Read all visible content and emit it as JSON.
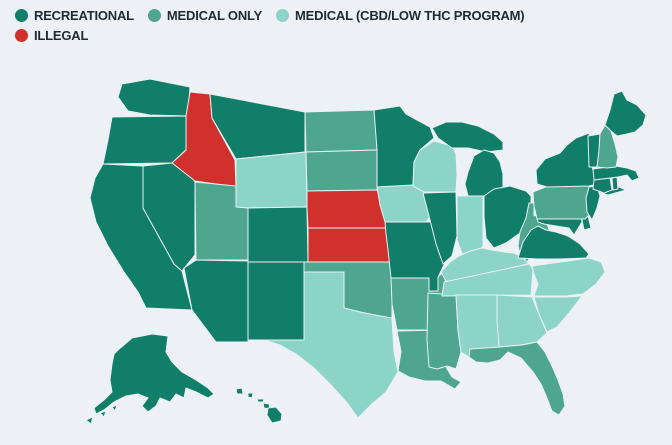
{
  "page": {
    "background": "#EDF1F6"
  },
  "legend": {
    "text_color": "#1F2A33",
    "items": [
      {
        "label": "RECREATIONAL",
        "status": "recreational",
        "color": "#117E69"
      },
      {
        "label": "MEDICAL ONLY",
        "status": "medical_only",
        "color": "#4EA68E"
      },
      {
        "label": "MEDICAL (CBD/LOW THC PROGRAM)",
        "status": "medical_cbd",
        "color": "#8CD3C8"
      },
      {
        "label": "ILLEGAL",
        "status": "illegal",
        "color": "#D1312D"
      }
    ]
  },
  "map": {
    "type": "choropleth",
    "region": "United States",
    "background": "#EDF1F6",
    "state_border_color": "#E9F1F5",
    "states": [
      {
        "abbr": "WA",
        "name": "Washington",
        "status": "recreational"
      },
      {
        "abbr": "OR",
        "name": "Oregon",
        "status": "recreational"
      },
      {
        "abbr": "CA",
        "name": "California",
        "status": "recreational"
      },
      {
        "abbr": "NV",
        "name": "Nevada",
        "status": "recreational"
      },
      {
        "abbr": "ID",
        "name": "Idaho",
        "status": "illegal"
      },
      {
        "abbr": "MT",
        "name": "Montana",
        "status": "recreational"
      },
      {
        "abbr": "WY",
        "name": "Wyoming",
        "status": "medical_cbd"
      },
      {
        "abbr": "UT",
        "name": "Utah",
        "status": "medical_only"
      },
      {
        "abbr": "CO",
        "name": "Colorado",
        "status": "recreational"
      },
      {
        "abbr": "AZ",
        "name": "Arizona",
        "status": "recreational"
      },
      {
        "abbr": "NM",
        "name": "New Mexico",
        "status": "recreational"
      },
      {
        "abbr": "ND",
        "name": "North Dakota",
        "status": "medical_only"
      },
      {
        "abbr": "SD",
        "name": "South Dakota",
        "status": "medical_only"
      },
      {
        "abbr": "NE",
        "name": "Nebraska",
        "status": "illegal"
      },
      {
        "abbr": "KS",
        "name": "Kansas",
        "status": "illegal"
      },
      {
        "abbr": "OK",
        "name": "Oklahoma",
        "status": "medical_only"
      },
      {
        "abbr": "TX",
        "name": "Texas",
        "status": "medical_cbd"
      },
      {
        "abbr": "MN",
        "name": "Minnesota",
        "status": "recreational"
      },
      {
        "abbr": "IA",
        "name": "Iowa",
        "status": "medical_cbd"
      },
      {
        "abbr": "MO",
        "name": "Missouri",
        "status": "recreational"
      },
      {
        "abbr": "AR",
        "name": "Arkansas",
        "status": "medical_only"
      },
      {
        "abbr": "LA",
        "name": "Louisiana",
        "status": "medical_only"
      },
      {
        "abbr": "WI",
        "name": "Wisconsin",
        "status": "medical_cbd"
      },
      {
        "abbr": "IL",
        "name": "Illinois",
        "status": "recreational"
      },
      {
        "abbr": "MS",
        "name": "Mississippi",
        "status": "medical_only"
      },
      {
        "abbr": "MI",
        "name": "Michigan",
        "status": "recreational"
      },
      {
        "abbr": "IN",
        "name": "Indiana",
        "status": "medical_cbd"
      },
      {
        "abbr": "KY",
        "name": "Kentucky",
        "status": "medical_cbd"
      },
      {
        "abbr": "TN",
        "name": "Tennessee",
        "status": "medical_cbd"
      },
      {
        "abbr": "OH",
        "name": "Ohio",
        "status": "recreational"
      },
      {
        "abbr": "WV",
        "name": "West Virginia",
        "status": "medical_only"
      },
      {
        "abbr": "AL",
        "name": "Alabama",
        "status": "medical_cbd"
      },
      {
        "abbr": "GA",
        "name": "Georgia",
        "status": "medical_cbd"
      },
      {
        "abbr": "FL",
        "name": "Florida",
        "status": "medical_only"
      },
      {
        "abbr": "SC",
        "name": "South Carolina",
        "status": "medical_cbd"
      },
      {
        "abbr": "NC",
        "name": "North Carolina",
        "status": "medical_cbd"
      },
      {
        "abbr": "VA",
        "name": "Virginia",
        "status": "recreational"
      },
      {
        "abbr": "MD",
        "name": "Maryland",
        "status": "recreational"
      },
      {
        "abbr": "DE",
        "name": "Delaware",
        "status": "recreational"
      },
      {
        "abbr": "PA",
        "name": "Pennsylvania",
        "status": "medical_only"
      },
      {
        "abbr": "NJ",
        "name": "New Jersey",
        "status": "recreational"
      },
      {
        "abbr": "NY",
        "name": "New York",
        "status": "recreational"
      },
      {
        "abbr": "CT",
        "name": "Connecticut",
        "status": "recreational"
      },
      {
        "abbr": "RI",
        "name": "Rhode Island",
        "status": "recreational"
      },
      {
        "abbr": "MA",
        "name": "Massachusetts",
        "status": "recreational"
      },
      {
        "abbr": "VT",
        "name": "Vermont",
        "status": "recreational"
      },
      {
        "abbr": "NH",
        "name": "New Hampshire",
        "status": "medical_only"
      },
      {
        "abbr": "ME",
        "name": "Maine",
        "status": "recreational"
      },
      {
        "abbr": "AK",
        "name": "Alaska",
        "status": "recreational"
      },
      {
        "abbr": "HI",
        "name": "Hawaii",
        "status": "recreational"
      }
    ]
  }
}
